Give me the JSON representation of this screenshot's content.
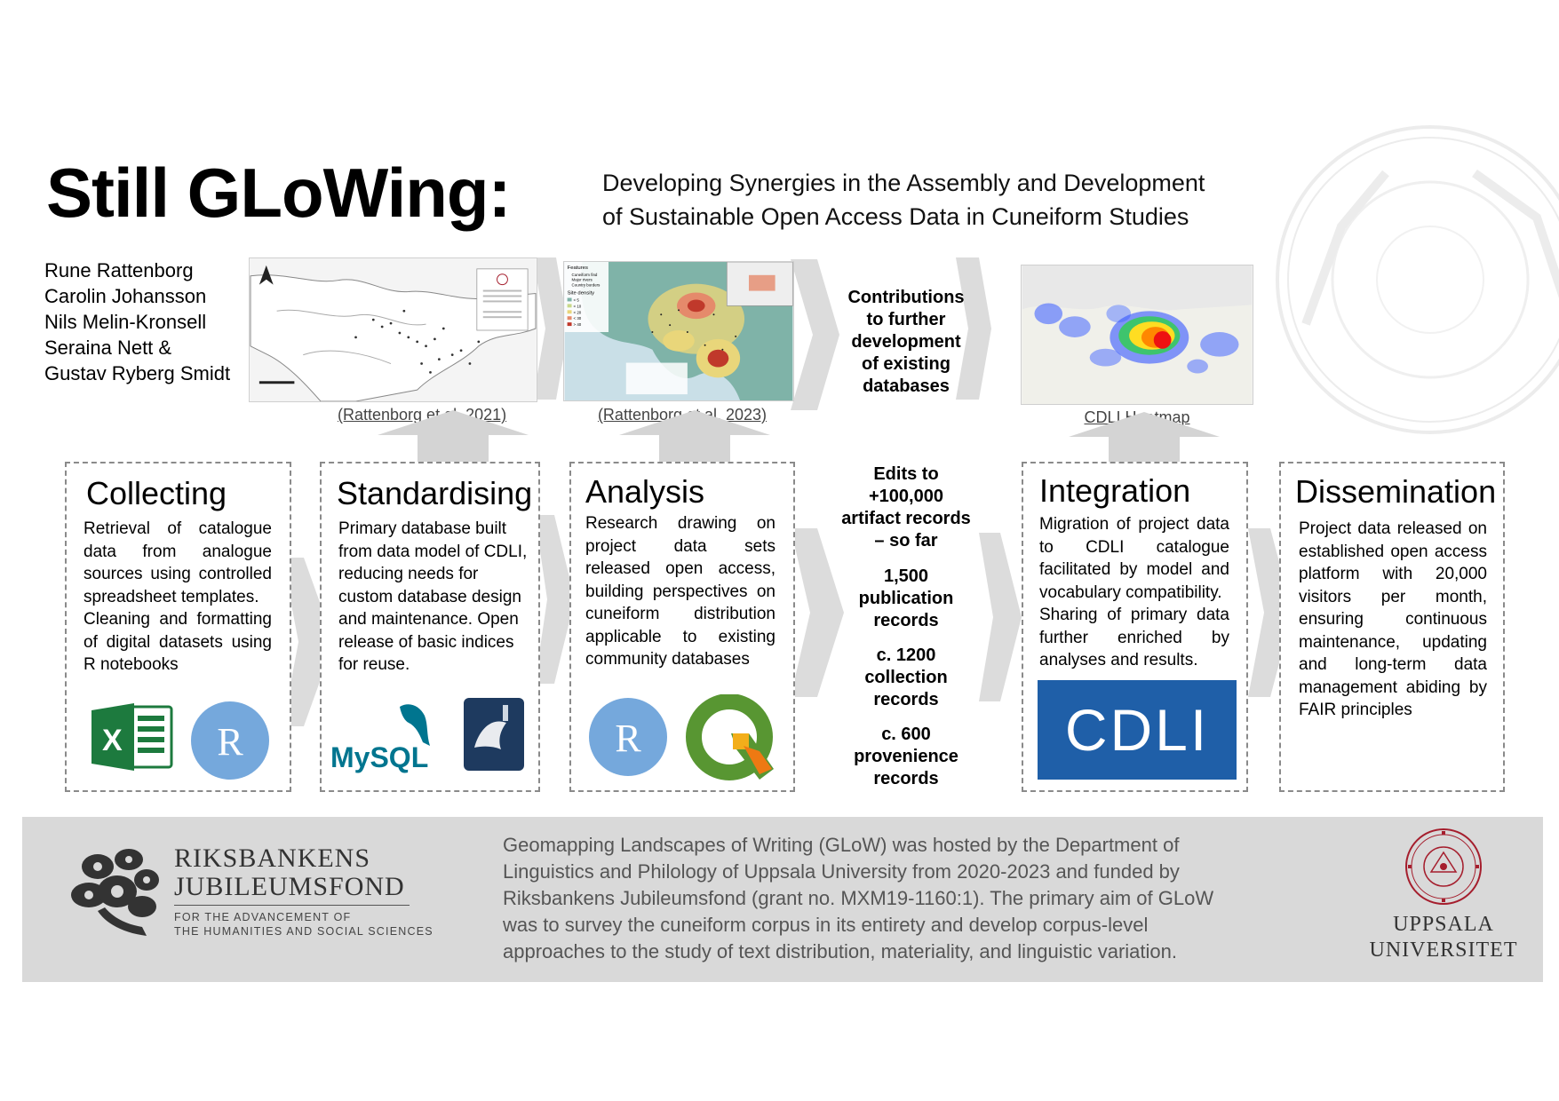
{
  "title": "Still GLoWing:",
  "subtitle_lines": [
    "Developing Synergies in the Assembly and Development",
    "of Sustainable Open Access Data in Cuneiform Studies"
  ],
  "authors": [
    "Rune Rattenborg",
    "Carolin Johansson",
    "Nils Melin-Kronsell",
    "Seraina Nett &",
    "Gustav Ryberg Smidt"
  ],
  "figures": {
    "map1_caption": "(Rattenborg et al. 2021)",
    "map2_caption": "(Rattenborg et al. 2023)",
    "map2_legend": [
      "Features",
      "Cuneiform find",
      "Major rivers",
      "Country borders",
      "Site density",
      "< 5",
      "< 10",
      "< 20",
      "< 30",
      "> 40"
    ],
    "heatmap_caption": "CDLI Heatmap",
    "contributions_lines": [
      "Contributions",
      "to further",
      "development",
      "of existing",
      "databases"
    ]
  },
  "stages": {
    "collecting": {
      "title": "Collecting",
      "paragraphs": [
        "Retrieval of catalogue data from analogue sources using controlled spreadsheet templates.",
        "Cleaning and formatting of digital datasets using R notebooks"
      ],
      "icons": [
        "excel-icon",
        "r-icon"
      ]
    },
    "standardising": {
      "title": "Standardising",
      "paragraphs": [
        "Primary database built from data model of CDLI, reducing needs for custom database design and maintenance. Open release of basic indices for reuse."
      ],
      "logo_text": "MySQL",
      "icons": [
        "mysql-logo",
        "mysql-workbench-icon"
      ]
    },
    "analysis": {
      "title": "Analysis",
      "paragraphs": [
        "Research drawing on project data sets released open access, building perspectives on cuneiform distribution applicable to existing community databases"
      ],
      "icons": [
        "r-icon",
        "qgis-icon"
      ]
    },
    "integration": {
      "title": "Integration",
      "paragraphs": [
        "Migration of project data to CDLI catalogue facilitated by model and vocabulary compatibility.",
        "Sharing of primary data further enriched by analyses and results."
      ],
      "logo_text": "CDLI"
    },
    "dissemination": {
      "title": "Dissemination",
      "paragraphs": [
        "Project data released on established open access platform with 20,000 visitors per month, ensuring continuous maintenance, updating and long-term data management abiding by FAIR principles"
      ]
    }
  },
  "stats": [
    {
      "lines": [
        "Edits to",
        "+100,000",
        "artifact records",
        "– so far"
      ]
    },
    {
      "lines": [
        "1,500",
        "publication",
        "records"
      ]
    },
    {
      "lines": [
        "c. 1200",
        "collection",
        "records"
      ]
    },
    {
      "lines": [
        "c. 600",
        "provenience",
        "records"
      ]
    }
  ],
  "footer": {
    "rj_name_lines": [
      "RIKSBANKENS",
      "JUBILEUMSFOND"
    ],
    "rj_tag_lines": [
      "FOR THE ADVANCEMENT OF",
      "THE HUMANITIES AND SOCIAL SCIENCES"
    ],
    "text_lines": [
      "Geomapping Landscapes of Writing (GLoW) was hosted by the Department of",
      "Linguistics and Philology of Uppsala University from 2020-2023 and funded by",
      "Riksbankens Jubileumsfond (grant no. MXM19-1160:1). The primary aim of GLoW",
      "was to survey the cuneiform corpus in its entirety and develop corpus-level",
      "approaches to the study of text distribution, materiality, and linguistic variation."
    ],
    "uu_name_lines": [
      "UPPSALA",
      "UNIVERSITET"
    ]
  },
  "colors": {
    "accent_green": "#1d7a3e",
    "r_blue": "#75a8dc",
    "mysql_blue": "#00758f",
    "mysql_orange": "#f29111",
    "qgis_green": "#589632",
    "qgis_yellow": "#f3ae1a",
    "cdli_blue": "#1f5fa8",
    "footer_grey": "#d9d9d9",
    "uppsala_red": "#a51e2d"
  }
}
